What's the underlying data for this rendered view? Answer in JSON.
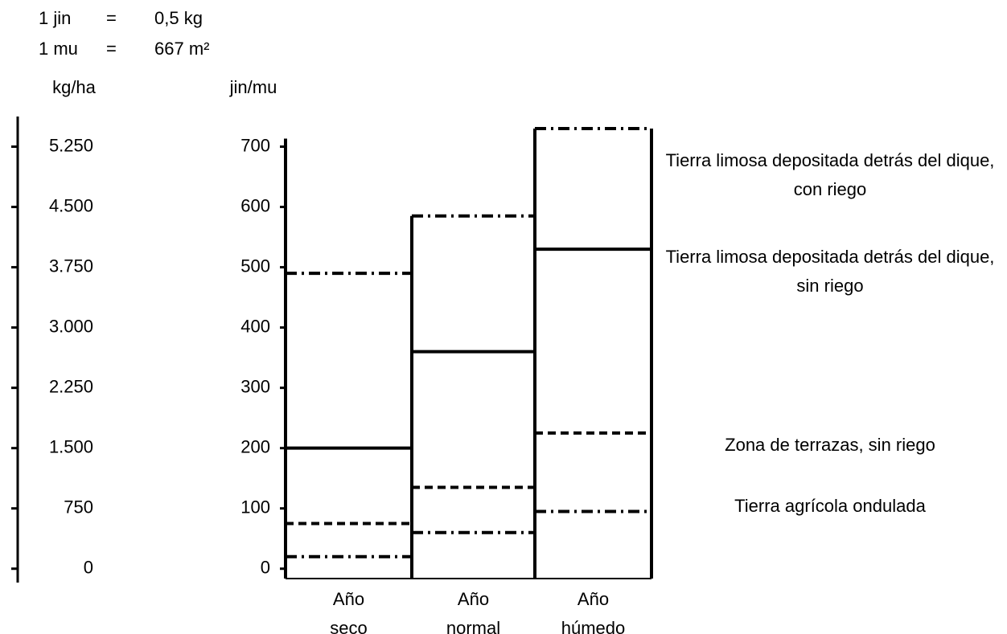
{
  "chart_data": {
    "type": "step",
    "conversions": [
      {
        "unit": "1 jin",
        "equals": "=",
        "value": "0,5 kg"
      },
      {
        "unit": "1 mu",
        "equals": "=",
        "value": "667 m²"
      }
    ],
    "y2_label": "kg/ha",
    "y_label": "jin/mu",
    "categories": [
      "Año seco",
      "Año normal",
      "Año húmedo"
    ],
    "series": [
      {
        "name": "Tierra limosa depositada detrás del dique, con riego",
        "color": "#000000",
        "dash": "dashdot",
        "values": [
          490,
          585,
          730
        ]
      },
      {
        "name": "Tierra limosa depositada detrás del dique, sin riego",
        "color": "#000000",
        "dash": "solid",
        "values": [
          200,
          360,
          530
        ]
      },
      {
        "name": "Zona de terrazas, sin riego",
        "color": "#000000",
        "dash": "dashed",
        "values": [
          75,
          135,
          225
        ]
      },
      {
        "name": "Tierra agrícola ondulada",
        "color": "#000000",
        "dash": "dashdot",
        "values": [
          20,
          60,
          95
        ]
      }
    ],
    "ylim": [
      -23,
      750
    ],
    "yticks": [
      0,
      100,
      200,
      300,
      400,
      500,
      600,
      700
    ],
    "y2lim": [
      -172.5,
      5625
    ],
    "y2ticks": [
      0,
      750,
      {
        "value": 1500,
        "label": "1.500"
      },
      {
        "value": 2250,
        "label": "2.250"
      },
      {
        "value": 3000,
        "label": "3.000"
      },
      {
        "value": 3750,
        "label": "3.750"
      },
      {
        "value": 4500,
        "label": "4.500"
      },
      {
        "value": 5250,
        "label": "5.250"
      }
    ]
  }
}
